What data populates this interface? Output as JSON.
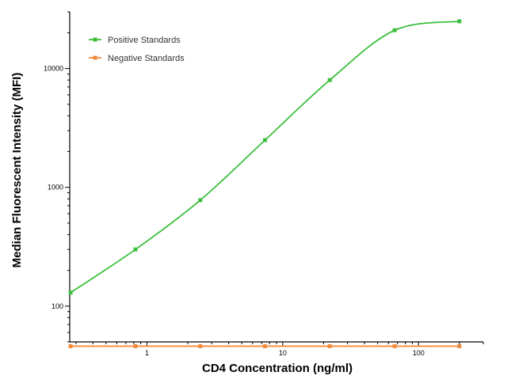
{
  "chart_data": {
    "type": "line",
    "title": "",
    "xlabel": "CD4 Concentration (ng/ml)",
    "ylabel": "Median  Fluorescent Intensity  (MFI)",
    "xscale": "log",
    "yscale": "log",
    "xlim": [
      0.27,
      300
    ],
    "ylim": [
      50,
      30000
    ],
    "x_ticks": [
      1,
      10,
      100
    ],
    "x_tick_labels": [
      "1",
      "10",
      "100"
    ],
    "y_ticks": [
      100,
      1000,
      10000
    ],
    "y_tick_labels": [
      "100",
      "1000",
      "10000"
    ],
    "grid": false,
    "legend_position": "top-left",
    "series": [
      {
        "name": "Positive Standards",
        "color": "#3cbf3c",
        "x": [
          0.274,
          0.823,
          2.47,
          7.41,
          22.2,
          66.7,
          200
        ],
        "y": [
          130,
          300,
          780,
          2500,
          8000,
          21000,
          25000
        ]
      },
      {
        "name": "Negative Standards",
        "color": "#f08a3c",
        "x": [
          0.274,
          0.823,
          2.47,
          7.41,
          22.2,
          66.7,
          200
        ],
        "y": [
          46,
          46,
          46,
          46,
          46,
          46,
          46
        ]
      }
    ]
  }
}
